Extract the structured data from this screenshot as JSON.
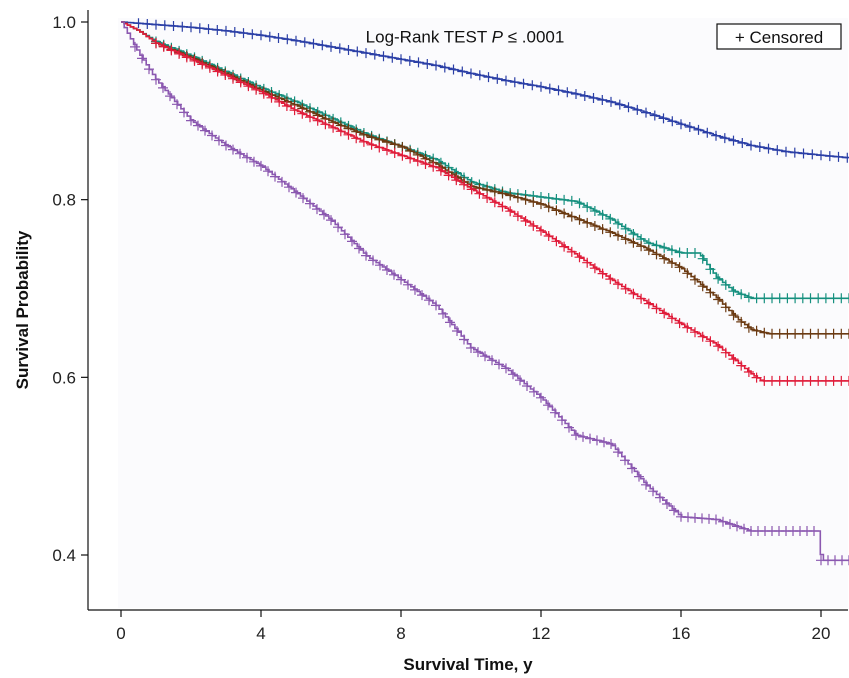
{
  "chart_data": {
    "type": "line",
    "subtype": "kaplan-meier step plot with censor marks",
    "title": "",
    "xlabel": "Survival Time, y",
    "ylabel": "Survival Probability",
    "xlim": [
      -0.8,
      20.8
    ],
    "ylim": [
      0.36,
      1.01
    ],
    "xticks": [
      0,
      4,
      8,
      12,
      16,
      20
    ],
    "xtick_labels": [
      "0",
      "4",
      "8",
      "12",
      "16",
      "20"
    ],
    "yticks": [
      0.4,
      0.6,
      0.8,
      1.0
    ],
    "ytick_labels": [
      "0.4",
      "0.6",
      "0.8",
      "1.0"
    ],
    "annotation": {
      "text_prefix": "Log-Rank TEST ",
      "text_italic": "P",
      "text_suffix": " ≤ .0001",
      "x": 10,
      "y": 0.995
    },
    "legend": {
      "label": "+ Censored",
      "placement": "top-right",
      "boxed": true
    },
    "grid": false,
    "censor_marker": "+",
    "series": [
      {
        "color": "#2b3fa6",
        "points": [
          [
            0,
            1.0
          ],
          [
            1,
            0.997
          ],
          [
            2,
            0.994
          ],
          [
            3,
            0.99
          ],
          [
            4,
            0.985
          ],
          [
            5,
            0.979
          ],
          [
            6,
            0.972
          ],
          [
            7,
            0.965
          ],
          [
            8,
            0.958
          ],
          [
            9,
            0.951
          ],
          [
            10,
            0.942
          ],
          [
            11,
            0.934
          ],
          [
            12,
            0.927
          ],
          [
            13,
            0.919
          ],
          [
            14,
            0.91
          ],
          [
            15,
            0.898
          ],
          [
            16,
            0.885
          ],
          [
            17,
            0.872
          ],
          [
            18,
            0.861
          ],
          [
            19,
            0.854
          ],
          [
            20,
            0.85
          ],
          [
            20.8,
            0.847
          ]
        ],
        "censor_from": 0.5,
        "censor_step": 0.25
      },
      {
        "color": "#16907f",
        "points": [
          [
            0,
            1.0
          ],
          [
            0.5,
            0.99
          ],
          [
            1,
            0.978
          ],
          [
            2,
            0.962
          ],
          [
            3,
            0.944
          ],
          [
            4,
            0.926
          ],
          [
            5,
            0.91
          ],
          [
            6,
            0.892
          ],
          [
            7,
            0.874
          ],
          [
            8,
            0.86
          ],
          [
            9,
            0.845
          ],
          [
            10,
            0.82
          ],
          [
            11,
            0.808
          ],
          [
            12,
            0.803
          ],
          [
            13,
            0.798
          ],
          [
            14,
            0.778
          ],
          [
            15,
            0.752
          ],
          [
            16,
            0.74
          ],
          [
            16.5,
            0.74
          ],
          [
            17,
            0.713
          ],
          [
            17.5,
            0.697
          ],
          [
            18,
            0.689
          ],
          [
            20.8,
            0.689
          ]
        ],
        "censor_from": 1.0,
        "censor_step": 0.22
      },
      {
        "color": "#6b3a12",
        "points": [
          [
            0,
            1.0
          ],
          [
            0.5,
            0.99
          ],
          [
            1,
            0.976
          ],
          [
            2,
            0.96
          ],
          [
            3,
            0.942
          ],
          [
            4,
            0.923
          ],
          [
            5,
            0.906
          ],
          [
            6,
            0.888
          ],
          [
            7,
            0.872
          ],
          [
            8,
            0.86
          ],
          [
            9,
            0.84
          ],
          [
            10,
            0.815
          ],
          [
            11,
            0.806
          ],
          [
            12,
            0.795
          ],
          [
            13,
            0.779
          ],
          [
            14,
            0.763
          ],
          [
            15,
            0.745
          ],
          [
            16,
            0.723
          ],
          [
            17,
            0.69
          ],
          [
            17.6,
            0.666
          ],
          [
            18,
            0.654
          ],
          [
            18.5,
            0.649
          ],
          [
            20.8,
            0.649
          ]
        ],
        "censor_from": 1.0,
        "censor_step": 0.22
      },
      {
        "color": "#e01c3a",
        "points": [
          [
            0,
            1.0
          ],
          [
            0.5,
            0.99
          ],
          [
            1,
            0.976
          ],
          [
            2,
            0.958
          ],
          [
            3,
            0.94
          ],
          [
            4,
            0.921
          ],
          [
            5,
            0.9
          ],
          [
            6,
            0.882
          ],
          [
            7,
            0.864
          ],
          [
            8,
            0.85
          ],
          [
            9,
            0.836
          ],
          [
            10,
            0.812
          ],
          [
            11,
            0.79
          ],
          [
            12,
            0.765
          ],
          [
            13,
            0.738
          ],
          [
            14,
            0.71
          ],
          [
            15,
            0.685
          ],
          [
            16,
            0.66
          ],
          [
            17,
            0.637
          ],
          [
            18,
            0.604
          ],
          [
            18.3,
            0.596
          ],
          [
            20.8,
            0.596
          ]
        ],
        "censor_from": 1.0,
        "censor_step": 0.22
      },
      {
        "color": "#8b58b0",
        "points": [
          [
            0,
            1.0
          ],
          [
            0.5,
            0.965
          ],
          [
            1,
            0.935
          ],
          [
            2,
            0.889
          ],
          [
            3,
            0.861
          ],
          [
            4,
            0.838
          ],
          [
            5,
            0.808
          ],
          [
            6,
            0.777
          ],
          [
            7,
            0.737
          ],
          [
            8,
            0.71
          ],
          [
            9,
            0.681
          ],
          [
            10,
            0.633
          ],
          [
            11,
            0.61
          ],
          [
            12,
            0.577
          ],
          [
            13,
            0.535
          ],
          [
            14,
            0.525
          ],
          [
            15,
            0.479
          ],
          [
            16,
            0.443
          ],
          [
            17,
            0.44
          ],
          [
            18,
            0.427
          ],
          [
            19,
            0.427
          ],
          [
            19.9,
            0.427
          ],
          [
            20,
            0.394
          ],
          [
            20.8,
            0.394
          ]
        ],
        "censor_from": 0.4,
        "censor_step": 0.2
      }
    ]
  }
}
